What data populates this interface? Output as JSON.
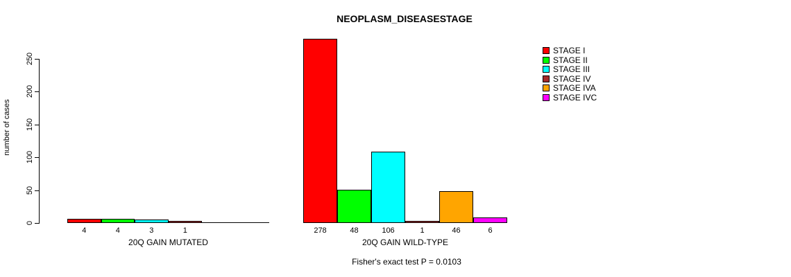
{
  "page": {
    "background": "#FFFFFF"
  },
  "chart_data": {
    "type": "bar",
    "title": "NEOPLASM_DISEASESTAGE",
    "ylabel": "number of cases",
    "xlabel": "",
    "yticks": [
      0,
      50,
      100,
      150,
      200,
      250
    ],
    "ylim": [
      0,
      278
    ],
    "grid": false,
    "legend_position": "right",
    "legend": [
      {
        "label": "STAGE I",
        "color": "#FF0000"
      },
      {
        "label": "STAGE II",
        "color": "#00FF00"
      },
      {
        "label": "STAGE III",
        "color": "#00FFFF"
      },
      {
        "label": "STAGE IV",
        "color": "#A52A2A"
      },
      {
        "label": "STAGE IVA",
        "color": "#FFA500"
      },
      {
        "label": "STAGE IVC",
        "color": "#FF00FF"
      }
    ],
    "groups": [
      {
        "label": "20Q GAIN MUTATED",
        "bars": [
          {
            "stage": "STAGE I",
            "value": 4
          },
          {
            "stage": "STAGE II",
            "value": 4
          },
          {
            "stage": "STAGE III",
            "value": 3
          },
          {
            "stage": "STAGE IV",
            "value": 1
          }
        ]
      },
      {
        "label": "20Q GAIN WILD-TYPE",
        "bars": [
          {
            "stage": "STAGE I",
            "value": 278
          },
          {
            "stage": "STAGE II",
            "value": 48
          },
          {
            "stage": "STAGE III",
            "value": 106
          },
          {
            "stage": "STAGE IV",
            "value": 1
          },
          {
            "stage": "STAGE IVA",
            "value": 46
          },
          {
            "stage": "STAGE IVC",
            "value": 6
          }
        ]
      }
    ],
    "footnote": "Fisher's exact test P = 0.0103"
  }
}
